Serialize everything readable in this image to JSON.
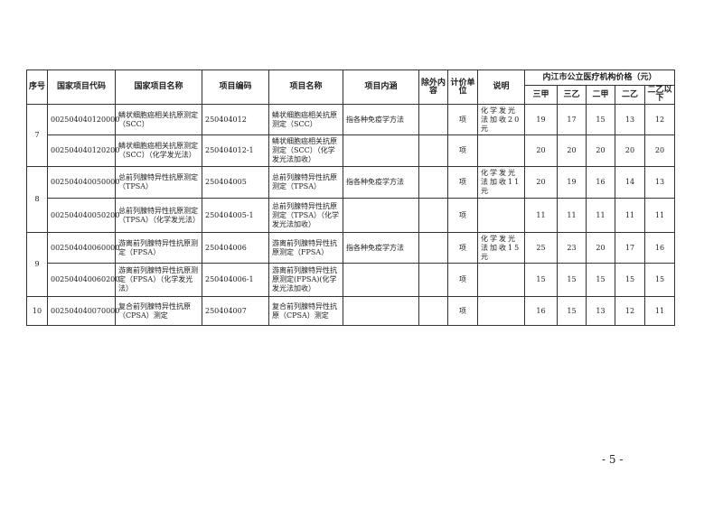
{
  "headers": {
    "seq": "序号",
    "national_code": "国家项目代码",
    "national_name": "国家项目名称",
    "item_code": "项目编码",
    "item_name": "项目名称",
    "connotation": "项目内涵",
    "excluded": "除外内容",
    "unit": "计价单位",
    "note": "说明",
    "price_group": "内江市公立医疗机构价格（元）",
    "levels": [
      "三甲",
      "三乙",
      "二甲",
      "二乙",
      "二乙以下"
    ]
  },
  "rows": [
    {
      "seq": "7",
      "national_code": "002504040120000",
      "national_name": "鳞状细胞癌相关抗原测定（SCC）",
      "item_code": "250404012",
      "item_name": "鳞状细胞癌相关抗原测定（SCC）",
      "connotation": "指各种免疫学方法",
      "excluded": "",
      "unit": "项",
      "note": "化学发光法加收20元",
      "prices": [
        "19",
        "17",
        "15",
        "13",
        "12"
      ]
    },
    {
      "seq": "",
      "national_code": "002504040120200",
      "national_name": "鳞状细胞癌相关抗原测定（SCC）（化学发光法）",
      "item_code": "250404012-1",
      "item_name": "鳞状细胞癌相关抗原测定（SCC）（化学发光法加收）",
      "connotation": "",
      "excluded": "",
      "unit": "项",
      "note": "",
      "prices": [
        "20",
        "20",
        "20",
        "20",
        "20"
      ]
    },
    {
      "seq": "8",
      "national_code": "002504040050000",
      "national_name": "总前列腺特异性抗原测定（TPSA）",
      "item_code": "250404005",
      "item_name": "总前列腺特异性抗原测定（TPSA）",
      "connotation": "指各种免疫学方法",
      "excluded": "",
      "unit": "项",
      "note": "化学发光法加收11元",
      "prices": [
        "20",
        "19",
        "16",
        "14",
        "13"
      ]
    },
    {
      "seq": "",
      "national_code": "002504040050200",
      "national_name": "总前列腺特异性抗原测定（TPSA）（化学发光法）",
      "item_code": "250404005-1",
      "item_name": "总前列腺特异性抗原测定（TPSA）（化学发光法加收）",
      "connotation": "",
      "excluded": "",
      "unit": "项",
      "note": "",
      "prices": [
        "11",
        "11",
        "11",
        "11",
        "11"
      ]
    },
    {
      "seq": "9",
      "national_code": "002504040060000",
      "national_name": "游离前列腺特异性抗原测定（FPSA）",
      "item_code": "250404006",
      "item_name": "游离前列腺特异性抗原测定（FPSA）",
      "connotation": "指各种免疫学方法",
      "excluded": "",
      "unit": "项",
      "note": "化学发光法加收15元",
      "prices": [
        "25",
        "23",
        "20",
        "17",
        "16"
      ]
    },
    {
      "seq": "",
      "national_code": "002504040060200",
      "national_name": "游离前列腺特异性抗原测定（FPSA）（化学发光法）",
      "item_code": "250404006-1",
      "item_name": "游离前列腺特异性抗原测定(FPSA)(化学发光法加收）",
      "connotation": "",
      "excluded": "",
      "unit": "项",
      "note": "",
      "prices": [
        "15",
        "15",
        "15",
        "15",
        "15"
      ]
    },
    {
      "seq": "10",
      "national_code": "002504040070000",
      "national_name": "复合前列腺特异性抗原（CPSA）测定",
      "item_code": "250404007",
      "item_name": "复合前列腺特异性抗原（CPSA）测定",
      "connotation": "",
      "excluded": "",
      "unit": "项",
      "note": "",
      "prices": [
        "16",
        "15",
        "13",
        "12",
        "11"
      ]
    }
  ],
  "page_number": "- 5 -"
}
